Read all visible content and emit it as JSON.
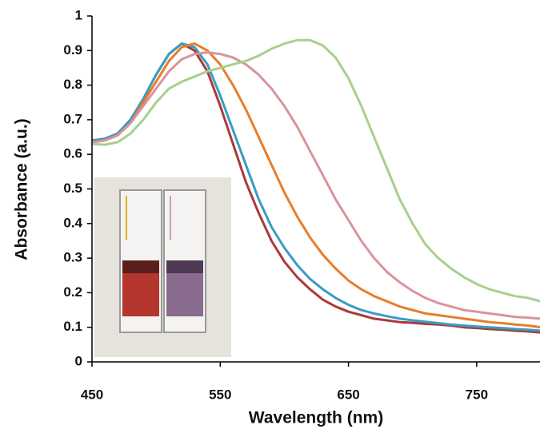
{
  "chart_data": {
    "type": "line",
    "x_label": "Wavelength (nm)",
    "y_label": "Absorbance (a.u.)",
    "x": [
      450,
      460,
      470,
      480,
      490,
      500,
      510,
      520,
      530,
      540,
      550,
      560,
      570,
      580,
      590,
      600,
      610,
      620,
      630,
      640,
      650,
      660,
      670,
      680,
      690,
      700,
      710,
      720,
      730,
      740,
      750,
      760,
      770,
      780,
      790,
      800
    ],
    "xlim": [
      450,
      800
    ],
    "xticks": [
      450,
      550,
      650,
      750
    ],
    "ylim": [
      0,
      1
    ],
    "yticks": [
      0,
      0.1,
      0.2,
      0.3,
      0.4,
      0.5,
      0.6,
      0.7,
      0.8,
      0.9,
      1
    ],
    "series": [
      {
        "color": "#a93a3a",
        "values": [
          0.64,
          0.645,
          0.66,
          0.7,
          0.76,
          0.83,
          0.89,
          0.92,
          0.9,
          0.84,
          0.74,
          0.63,
          0.52,
          0.43,
          0.35,
          0.29,
          0.245,
          0.21,
          0.18,
          0.16,
          0.145,
          0.135,
          0.125,
          0.12,
          0.115,
          0.113,
          0.11,
          0.108,
          0.105,
          0.1,
          0.098,
          0.095,
          0.093,
          0.09,
          0.088,
          0.085
        ]
      },
      {
        "color": "#3a9cc4",
        "values": [
          0.64,
          0.645,
          0.66,
          0.7,
          0.76,
          0.83,
          0.89,
          0.92,
          0.91,
          0.86,
          0.77,
          0.67,
          0.57,
          0.47,
          0.39,
          0.33,
          0.28,
          0.24,
          0.21,
          0.185,
          0.165,
          0.15,
          0.14,
          0.132,
          0.125,
          0.12,
          0.116,
          0.112,
          0.108,
          0.105,
          0.102,
          0.1,
          0.098,
          0.095,
          0.093,
          0.09
        ]
      },
      {
        "color": "#e87d2b",
        "values": [
          0.635,
          0.64,
          0.655,
          0.69,
          0.75,
          0.81,
          0.87,
          0.91,
          0.92,
          0.9,
          0.86,
          0.8,
          0.73,
          0.65,
          0.57,
          0.49,
          0.42,
          0.36,
          0.31,
          0.27,
          0.235,
          0.21,
          0.19,
          0.175,
          0.16,
          0.15,
          0.14,
          0.135,
          0.13,
          0.125,
          0.12,
          0.115,
          0.112,
          0.108,
          0.105,
          0.1
        ]
      },
      {
        "color": "#d9949a",
        "values": [
          0.635,
          0.64,
          0.655,
          0.69,
          0.74,
          0.79,
          0.84,
          0.875,
          0.89,
          0.895,
          0.89,
          0.88,
          0.86,
          0.83,
          0.79,
          0.74,
          0.68,
          0.61,
          0.54,
          0.47,
          0.41,
          0.35,
          0.3,
          0.26,
          0.23,
          0.205,
          0.185,
          0.17,
          0.16,
          0.15,
          0.145,
          0.14,
          0.135,
          0.13,
          0.128,
          0.125
        ]
      },
      {
        "color": "#a8d08d",
        "values": [
          0.63,
          0.628,
          0.635,
          0.66,
          0.7,
          0.75,
          0.79,
          0.81,
          0.825,
          0.84,
          0.85,
          0.86,
          0.87,
          0.885,
          0.905,
          0.92,
          0.93,
          0.93,
          0.915,
          0.88,
          0.82,
          0.74,
          0.65,
          0.56,
          0.47,
          0.4,
          0.34,
          0.3,
          0.27,
          0.245,
          0.225,
          0.21,
          0.2,
          0.19,
          0.185,
          0.175
        ]
      }
    ]
  }
}
